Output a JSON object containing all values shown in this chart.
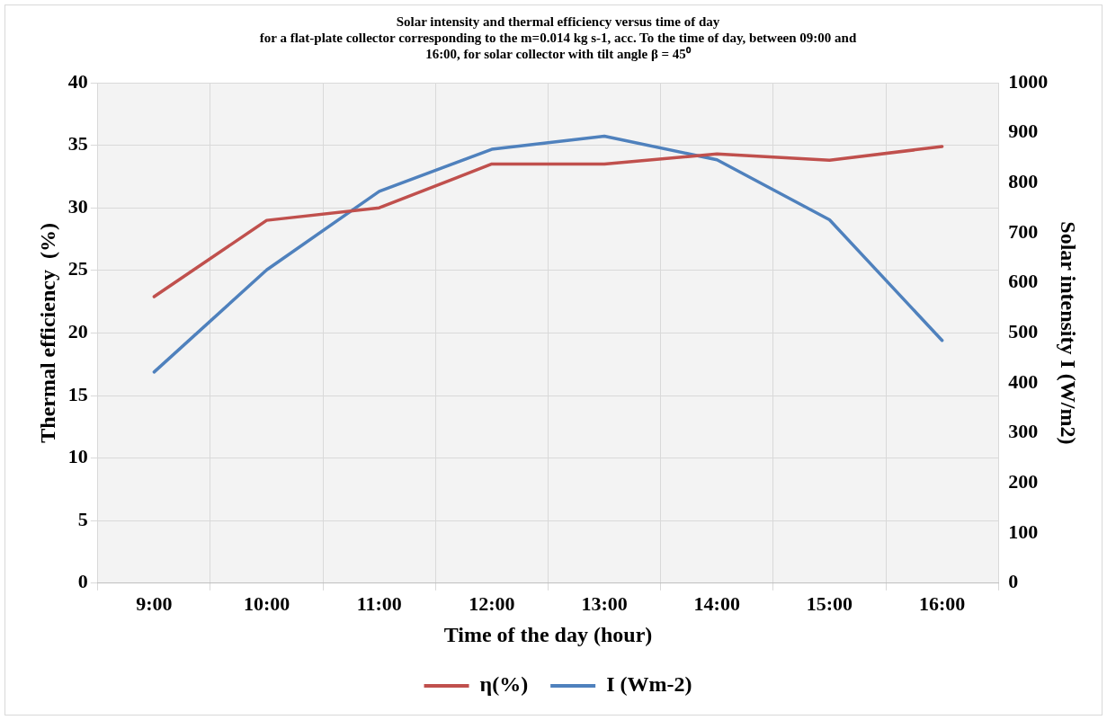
{
  "chart_data": {
    "type": "line",
    "title": "Solar intensity and thermal efficiency versus time of day\nfor a flat-plate collector corresponding to the m=0.014 kg s-1, acc. To the time of day, between 09:00 and\n16:00, for solar collector with tilt angle β = 45⁰",
    "xlabel": "Time of the day (hour)",
    "ylabel": "Thermal efficiency  (%)",
    "y2label": "Solar intensity I (W/m2)",
    "categories": [
      "9:00",
      "10:00",
      "11:00",
      "12:00",
      "13:00",
      "14:00",
      "15:00",
      "16:00"
    ],
    "series": [
      {
        "name": "η(%)",
        "color": "#c0504d",
        "values": [
          22.9,
          29.0,
          30.0,
          33.5,
          33.5,
          34.3,
          33.8,
          34.9
        ]
      },
      {
        "name": "I (Wm-2)",
        "color": "#4f81bd",
        "axis": "y2",
        "values": [
          422,
          626,
          783,
          867,
          893,
          846,
          726,
          485
        ]
      }
    ],
    "ylim": [
      0,
      40
    ],
    "yticks": [
      0,
      5,
      10,
      15,
      20,
      25,
      30,
      35,
      40
    ],
    "y2lim": [
      0,
      1000
    ],
    "y2ticks": [
      0,
      100,
      200,
      300,
      400,
      500,
      600,
      700,
      800,
      900,
      1000
    ],
    "grid": true,
    "legend": "bottom",
    "marker": "none",
    "line_style": "solid"
  }
}
